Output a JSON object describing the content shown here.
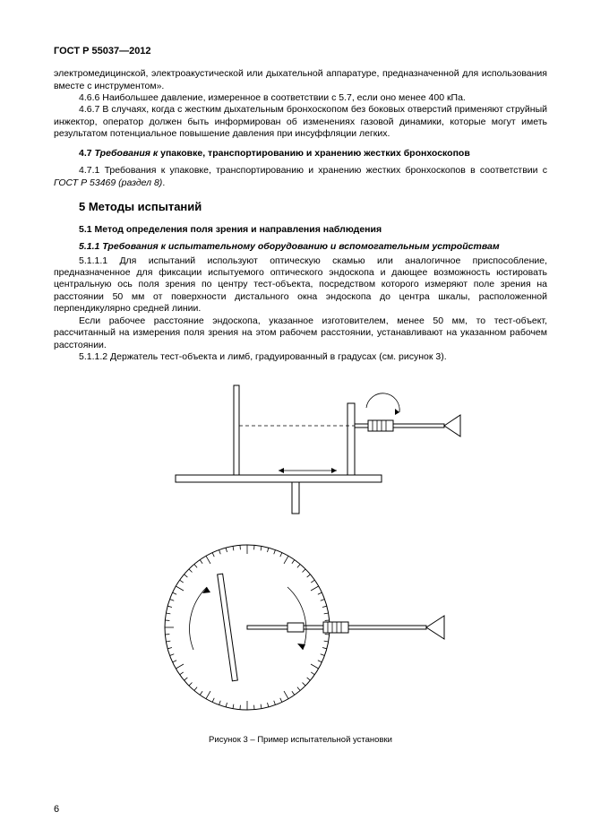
{
  "header": "ГОСТ Р 55037—2012",
  "p1": "электромедицинской, электроакустической или дыхательной аппаратуре, предназначенной для использования вместе с инструментом».",
  "p2": "4.6.6 Наибольшее давление, измеренное в соответствии с 5.7, если оно менее 400 кПа.",
  "p3": "4.6.7 В случаях, когда с жестким дыхательным бронхоскопом без боковых отверстий применяют струйный инжектор, оператор должен быть информирован об изменениях газовой динамики, которые могут иметь результатом потенциальное повышение давления при инсуффляции легких.",
  "h47_num": "4.7 ",
  "h47_req": "Требования к ",
  "h47_rest": "упаковке, транспортированию и хранению жестких бронхоскопов",
  "p4a": "4.7.1 Требования к упаковке, транспортированию и хранению жестких бронхоскопов в соответствии с ",
  "p4b": "ГОСТ Р 53469 (раздел 8)",
  "p4c": ".",
  "h5": "5 Методы испытаний",
  "h51": "5.1 Метод определения поля зрения и направления наблюдения",
  "h511": "5.1.1 Требования к испытательному оборудованию и вспомогательным устройствам",
  "p5": "5.1.1.1 Для испытаний используют оптическую скамью или аналогичное приспособление, предназначенное для фиксации испытуемого оптического эндоскопа и дающее возможность юстировать центральную ось поля зрения по центру тест-объекта, посредством которого измеряют поле зрения на расстоянии 50 мм от поверхности дистального окна эндоскопа до центра шкалы, расположенной перпендикулярно средней линии.",
  "p6": "Если рабочее расстояние эндоскопа, указанное изготовителем, менее 50 мм, то тест-объект, рассчитанный на измерения поля зрения на этом рабочем расстоянии, устанавливают на указанном рабочем расстоянии.",
  "p7": "5.1.1.2 Держатель тест-объекта и лимб, градуированный в градусах (см. рисунок 3).",
  "figcaption": "Рисунок 3 – Пример испытательной установки",
  "pagenum": "6",
  "name": {
    "header": "doc-header",
    "p1": "paragraph-intro",
    "p2": "paragraph-466",
    "p3": "paragraph-467",
    "h47": "heading-47",
    "p4": "paragraph-471",
    "h5": "heading-5",
    "h51": "heading-51",
    "h511": "heading-511",
    "p5": "paragraph-5111",
    "p6": "paragraph-working-distance",
    "p7": "paragraph-5112",
    "fig1": "figure-top-apparatus",
    "fig2": "figure-bottom-limb",
    "figcap": "figure-caption",
    "pagenum": "page-number"
  },
  "diagram": {
    "stroke": "#000000",
    "bg": "#ffffff",
    "top_width": 320,
    "top_height": 165,
    "bottom_width": 300,
    "bottom_height": 210,
    "limb_radius": 90,
    "limb_ticks": 72
  }
}
